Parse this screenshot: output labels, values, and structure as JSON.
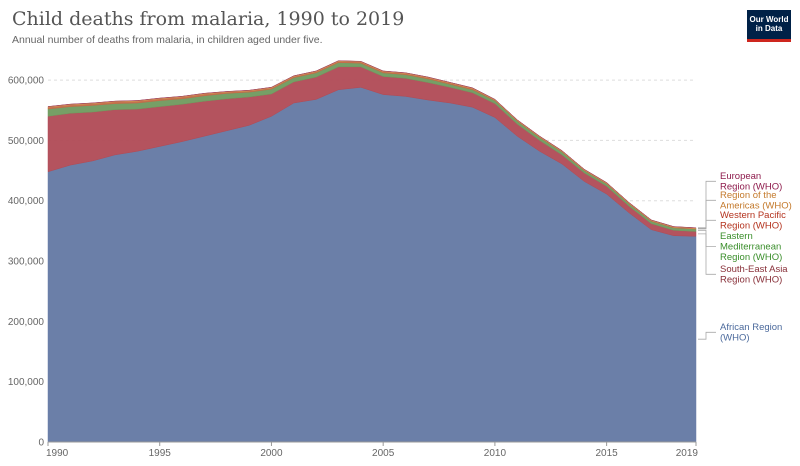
{
  "header": {
    "title": "Child deaths from malaria, 1990 to 2019",
    "subtitle": "Annual number of deaths from malaria, in children aged under five.",
    "logo_line1": "Our World",
    "logo_line2": "in Data",
    "logo_bg": "#002147",
    "logo_accent": "#ce261e"
  },
  "chart_data": {
    "type": "area",
    "stacked": true,
    "x": [
      1990,
      1991,
      1992,
      1993,
      1994,
      1995,
      1996,
      1997,
      1998,
      1999,
      2000,
      2001,
      2002,
      2003,
      2004,
      2005,
      2006,
      2007,
      2008,
      2009,
      2010,
      2011,
      2012,
      2013,
      2014,
      2015,
      2016,
      2017,
      2018,
      2019
    ],
    "xticks": [
      1990,
      1995,
      2000,
      2005,
      2010,
      2015,
      2019
    ],
    "xlim": [
      1990,
      2019
    ],
    "ylim": [
      0,
      630000
    ],
    "yticks": [
      0,
      100000,
      200000,
      300000,
      400000,
      500000,
      600000
    ],
    "ytick_labels": [
      "0",
      "100,000",
      "200,000",
      "300,000",
      "400,000",
      "500,000",
      "600,000"
    ],
    "grid": "horizontal dashed",
    "legend": "right, labels beside series ends",
    "series": [
      {
        "name": "African Region (WHO)",
        "label_lines": [
          "African Region",
          "(WHO)"
        ],
        "color": "#6b7fa8",
        "label_color": "#4c6a9c",
        "values": [
          448000,
          459000,
          466000,
          476000,
          482000,
          490000,
          498000,
          507000,
          516000,
          525000,
          540000,
          562000,
          568000,
          584000,
          588000,
          576000,
          573000,
          567000,
          562000,
          555000,
          538000,
          507000,
          482000,
          461000,
          432000,
          411000,
          380000,
          352000,
          342000,
          341000
        ]
      },
      {
        "name": "South-East Asia Region (WHO)",
        "label_lines": [
          "South-East Asia",
          "Region (WHO)"
        ],
        "color": "#b04a55",
        "label_color": "#883039",
        "values": [
          92000,
          86000,
          81000,
          75000,
          70000,
          66000,
          62000,
          58000,
          53000,
          47000,
          37000,
          35000,
          37000,
          38000,
          34000,
          30000,
          30000,
          29000,
          26000,
          24000,
          23000,
          20000,
          18000,
          15000,
          14000,
          13000,
          11000,
          10000,
          9000,
          8000
        ]
      },
      {
        "name": "Eastern Mediterranean Region (WHO)",
        "label_lines": [
          "Eastern",
          "Mediterranean",
          "Region (WHO)"
        ],
        "color": "#6f9a5e",
        "label_color": "#3a8e2b",
        "values": [
          12000,
          11000,
          11000,
          10000,
          10000,
          10000,
          9000,
          9000,
          9000,
          8000,
          8000,
          7000,
          7000,
          7000,
          6000,
          6000,
          6000,
          6000,
          5000,
          5000,
          5000,
          5000,
          5000,
          5000,
          4000,
          4000,
          4000,
          4000,
          4000,
          4000
        ]
      },
      {
        "name": "Western Pacific Region (WHO)",
        "label_lines": [
          "Western Pacific",
          "Region (WHO)"
        ],
        "color": "#c46a45",
        "label_color": "#b4331e",
        "values": [
          3000,
          3000,
          3000,
          3000,
          3000,
          3000,
          3000,
          3000,
          2000,
          2000,
          2000,
          2000,
          2000,
          2000,
          2000,
          2000,
          2000,
          2000,
          2000,
          2000,
          1000,
          1000,
          1000,
          1000,
          1000,
          1000,
          1000,
          1000,
          1000,
          1000
        ]
      },
      {
        "name": "Region of the Americas (WHO)",
        "label_lines": [
          "Region of the",
          "Americas (WHO)"
        ],
        "color": "#d39a55",
        "label_color": "#c47a2c",
        "values": [
          1000,
          1000,
          1000,
          1000,
          1000,
          1000,
          1000,
          1000,
          1000,
          1000,
          1000,
          1000,
          1000,
          1000,
          1000,
          1000,
          1000,
          1000,
          1000,
          1000,
          1000,
          1000,
          1000,
          1000,
          1000,
          1000,
          1000,
          1000,
          1000,
          1000
        ]
      },
      {
        "name": "European Region (WHO)",
        "label_lines": [
          "European",
          "Region (WHO)"
        ],
        "color": "#a04060",
        "label_color": "#8e1b4c",
        "values": [
          200,
          200,
          200,
          200,
          200,
          200,
          200,
          200,
          200,
          200,
          200,
          200,
          200,
          200,
          200,
          200,
          200,
          200,
          200,
          200,
          200,
          200,
          200,
          200,
          200,
          200,
          200,
          200,
          200,
          200
        ]
      }
    ]
  }
}
